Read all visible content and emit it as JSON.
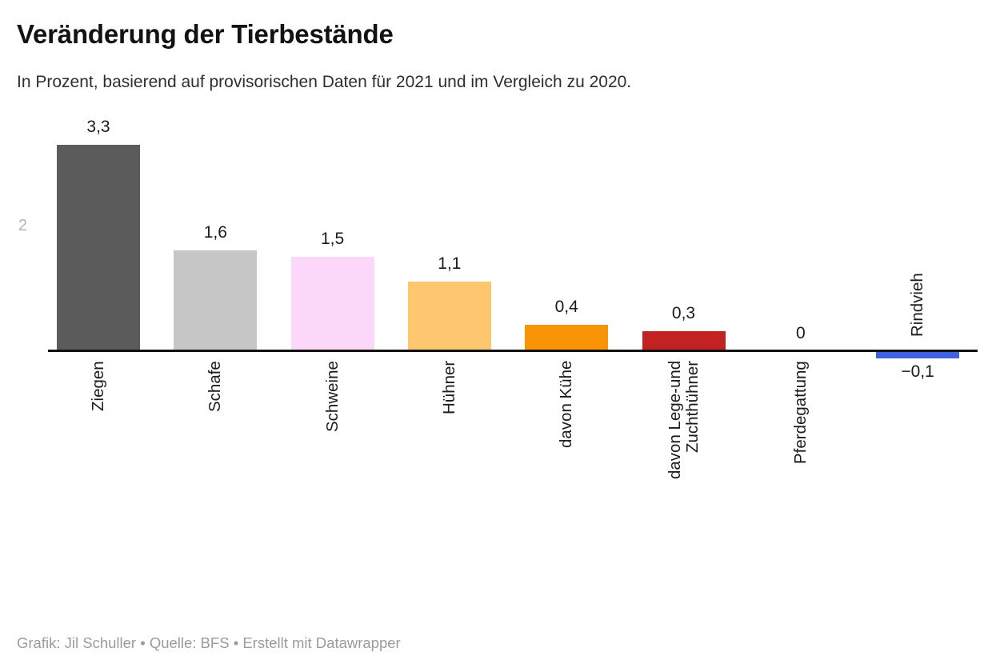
{
  "header": {
    "title": "Veränderung der Tierbestände",
    "subtitle": "In Prozent, basierend auf provisorischen Daten für 2021 und im Vergleich zu 2020."
  },
  "footer": {
    "credits": "Grafik: Jil Schuller • Quelle: BFS • Erstellt mit Datawrapper"
  },
  "chart_data": {
    "type": "bar",
    "orientation": "vertical-columns",
    "title": "Veränderung der Tierbestände",
    "subtitle": "In Prozent, basierend auf provisorischen Daten für 2021 und im Vergleich zu 2020.",
    "unit": "Prozent",
    "categories": [
      "Ziegen",
      "Schafe",
      "Schweine",
      "Hühner",
      "davon Kühe",
      "davon Lege-und Zuchthühner",
      "Pferdegattung",
      "Rindvieh"
    ],
    "category_label_lines": [
      [
        "Ziegen"
      ],
      [
        "Schafe"
      ],
      [
        "Schweine"
      ],
      [
        "Hühner"
      ],
      [
        "davon Kühe"
      ],
      [
        "davon Lege-und",
        "Zuchthühner"
      ],
      [
        "Pferdegattung"
      ],
      [
        "Rindvieh"
      ]
    ],
    "values": [
      3.3,
      1.6,
      1.5,
      1.1,
      0.4,
      0.3,
      0,
      -0.1
    ],
    "value_labels": [
      "3,3",
      "1,6",
      "1,5",
      "1,1",
      "0,4",
      "0,3",
      "0",
      "−0,1"
    ],
    "bar_colors": [
      "#5b5b5b",
      "#c6c6c6",
      "#fbd7fa",
      "#fcc76e",
      "#f89406",
      "#c32222",
      "",
      "#4261de"
    ],
    "y_axis": {
      "ticks": [
        {
          "value": 2,
          "label": "2"
        }
      ]
    },
    "ylim": [
      -0.35,
      3.55
    ],
    "grid": false,
    "legend": false,
    "baseline_color": "#111111"
  }
}
